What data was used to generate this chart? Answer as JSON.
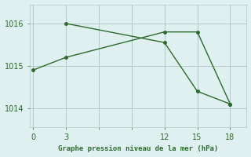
{
  "line1_x": [
    0,
    3,
    12,
    15,
    18
  ],
  "line1_y": [
    1014.9,
    1015.2,
    1015.8,
    1015.8,
    1014.1
  ],
  "line2_x": [
    3,
    12,
    15,
    18
  ],
  "line2_y": [
    1016.0,
    1015.55,
    1014.4,
    1014.1
  ],
  "color": "#2d6a2d",
  "bg_color": "#dff0f0",
  "grid_color": "#b0c8c8",
  "xlabel": "Graphe pression niveau de la mer (hPa)",
  "xticks": [
    0,
    3,
    6,
    9,
    12,
    15,
    18
  ],
  "xtick_labels": [
    "0",
    "3",
    "",
    "",
    "12",
    "15",
    "18"
  ],
  "yticks": [
    1014,
    1015,
    1016
  ],
  "xlim": [
    -0.3,
    19.5
  ],
  "ylim": [
    1013.55,
    1016.45
  ]
}
